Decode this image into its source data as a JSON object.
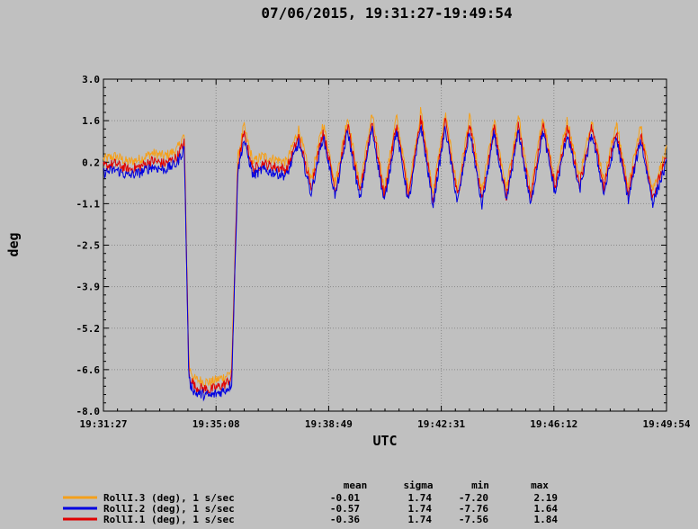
{
  "chart_data": {
    "type": "line",
    "title": "07/06/2015, 19:31:27-19:49:54",
    "xlabel": "UTC",
    "ylabel": "deg",
    "ylim": [
      -8.0,
      3.0
    ],
    "yticks": [
      "3.0",
      "1.6",
      "0.2",
      "-1.1",
      "-2.5",
      "-3.9",
      "-5.2",
      "-6.6",
      "-8.0"
    ],
    "xticks": [
      "19:31:27",
      "19:35:08",
      "19:38:49",
      "19:42:31",
      "19:46:12",
      "19:49:54"
    ],
    "xrange_minutes": [
      0,
      18.45
    ],
    "grid": true,
    "series_shape": {
      "x_minutes": [
        0.0,
        0.4,
        0.8,
        1.2,
        1.6,
        2.0,
        2.4,
        2.65,
        2.8,
        3.0,
        3.5,
        4.0,
        4.2,
        4.4,
        4.6,
        4.9,
        5.2,
        5.6,
        6.0,
        6.4,
        6.8,
        7.2,
        7.6,
        8.0,
        8.4,
        8.8,
        9.2,
        9.6,
        10.0,
        10.4,
        10.8,
        11.2,
        11.6,
        12.0,
        12.4,
        12.8,
        13.2,
        13.6,
        14.0,
        14.4,
        14.8,
        15.2,
        15.6,
        16.0,
        16.4,
        16.8,
        17.2,
        17.6,
        18.0,
        18.45
      ],
      "y_deg": [
        0.1,
        0.2,
        0.0,
        0.1,
        0.3,
        0.2,
        0.4,
        0.9,
        -6.8,
        -7.2,
        -7.3,
        -7.1,
        -6.9,
        0.1,
        1.2,
        0.0,
        0.2,
        0.1,
        0.0,
        1.1,
        -0.6,
        1.3,
        -0.7,
        1.5,
        -0.8,
        1.6,
        -0.9,
        1.5,
        -0.9,
        1.7,
        -1.0,
        1.6,
        -0.9,
        1.5,
        -1.0,
        1.4,
        -0.9,
        1.5,
        -1.0,
        1.5,
        -0.6,
        1.4,
        -0.5,
        1.4,
        -0.6,
        1.3,
        -0.8,
        1.2,
        -0.9,
        0.4
      ]
    },
    "series": [
      {
        "name": "RollI.3 (deg), 1 s/sec",
        "color": "#f5a01a",
        "offset": 0.25,
        "mean": "-0.01",
        "sigma": "1.74",
        "min": "-7.20",
        "max": "2.19"
      },
      {
        "name": "RollI.2 (deg), 1 s/sec",
        "color": "#0000e0",
        "offset": -0.2,
        "mean": "-0.57",
        "sigma": "1.74",
        "min": "-7.76",
        "max": "1.64"
      },
      {
        "name": "RollI.1 (deg), 1 s/sec",
        "color": "#e00000",
        "offset": 0.0,
        "mean": "-0.36",
        "sigma": "1.74",
        "min": "-7.56",
        "max": "1.84"
      }
    ],
    "stats_headers": [
      "mean",
      "sigma",
      "min",
      "max"
    ]
  }
}
